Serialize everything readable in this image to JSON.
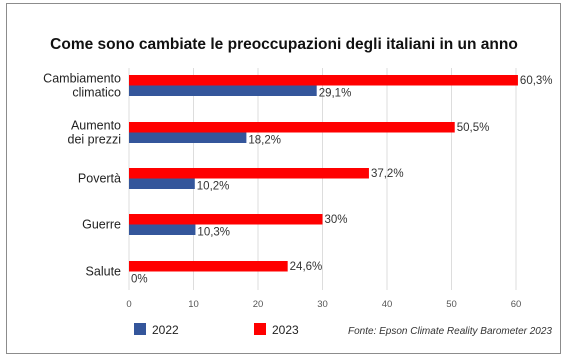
{
  "chart_data": {
    "type": "bar",
    "orientation": "horizontal",
    "title": "Come sono cambiate le preoccupazioni degli italiani in un anno",
    "categories": [
      [
        "Cambiamento",
        "climatico"
      ],
      [
        "Aumento",
        "dei prezzi"
      ],
      [
        "Povertà"
      ],
      [
        "Guerre"
      ],
      [
        "Salute"
      ]
    ],
    "series": [
      {
        "name": "2023",
        "color": "#ff0000",
        "values": [
          60.3,
          50.5,
          37.2,
          30,
          24.6
        ],
        "labels": [
          "60,3%",
          "50,5%",
          "37,2%",
          "30%",
          "24,6%"
        ]
      },
      {
        "name": "2022",
        "color": "#34569b",
        "values": [
          29.1,
          18.2,
          10.2,
          10.3,
          0
        ],
        "labels": [
          "29,1%",
          "18,2%",
          "10,2%",
          "10,3%",
          "0%"
        ]
      }
    ],
    "xticks": [
      "0",
      "10",
      "20",
      "30",
      "40",
      "50",
      "60"
    ],
    "xlim": [
      0,
      62
    ],
    "grid": true,
    "legend": [
      "2022",
      "2023"
    ],
    "legend_position": "bottom-left",
    "source": "Fonte: Epson Climate Reality Barometer 2023"
  }
}
